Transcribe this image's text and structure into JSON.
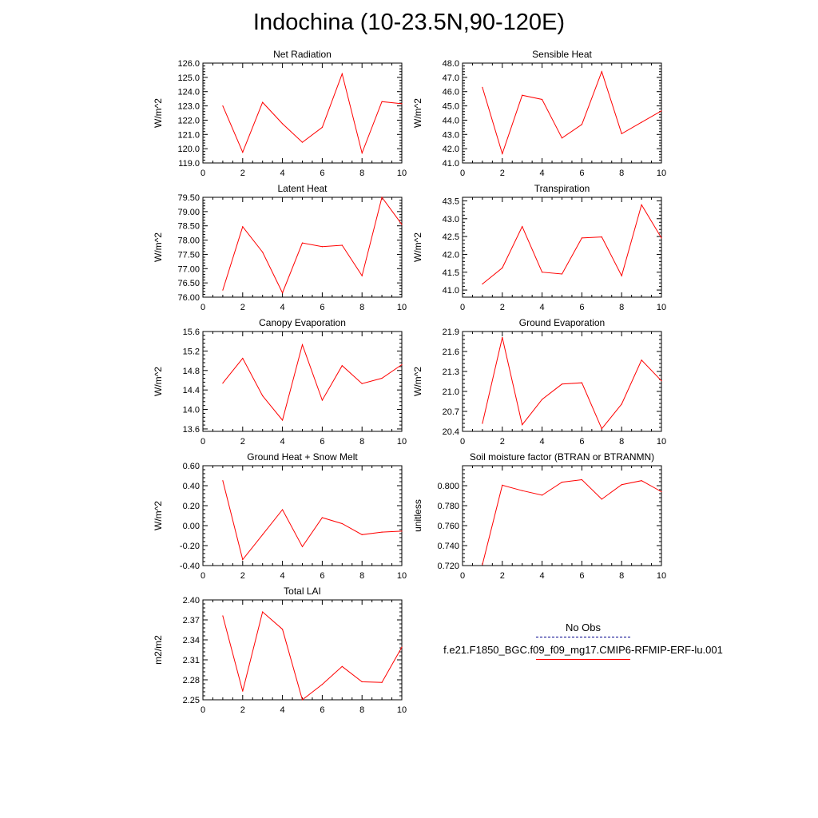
{
  "title": "Indochina (10-23.5N,90-120E)",
  "legend": [
    {
      "label": "No Obs",
      "style": "dashed",
      "color": "#00008b"
    },
    {
      "label": "f.e21.F1850_BGC.f09_f09_mg17.CMIP6-RFMIP-ERF-lu.001",
      "style": "solid",
      "color": "#ff0000"
    }
  ],
  "line_color": "#ff0000",
  "chart_data": [
    {
      "type": "line",
      "title": "Net Radiation",
      "ylabel": "W/m^2",
      "xlim": [
        0,
        10
      ],
      "xticks": [
        "0",
        "2",
        "4",
        "6",
        "8",
        "10"
      ],
      "ylim": [
        119,
        126
      ],
      "yticks": [
        "126.0",
        "125.0",
        "124.0",
        "123.0",
        "122.0",
        "121.0",
        "120.0",
        "119.0"
      ],
      "x": [
        1,
        2,
        3,
        4,
        5,
        6,
        7,
        8,
        9,
        10
      ],
      "values": [
        123.0,
        119.75,
        123.25,
        121.75,
        120.45,
        121.5,
        125.25,
        119.7,
        123.3,
        123.15
      ]
    },
    {
      "type": "line",
      "title": "Sensible Heat",
      "ylabel": "W/m^2",
      "xlim": [
        0,
        10
      ],
      "xticks": [
        "0",
        "2",
        "4",
        "6",
        "8",
        "10"
      ],
      "ylim": [
        41,
        48
      ],
      "yticks": [
        "48.0",
        "47.0",
        "46.0",
        "45.0",
        "44.0",
        "43.0",
        "42.0",
        "41.0"
      ],
      "x": [
        1,
        2,
        3,
        4,
        5,
        6,
        7,
        8,
        9,
        10
      ],
      "values": [
        46.3,
        41.65,
        45.75,
        45.45,
        42.75,
        43.7,
        47.4,
        43.05,
        43.85,
        44.65
      ]
    },
    {
      "type": "line",
      "title": "Latent Heat",
      "ylabel": "W/m^2",
      "xlim": [
        0,
        10
      ],
      "xticks": [
        "0",
        "2",
        "4",
        "6",
        "8",
        "10"
      ],
      "ylim": [
        76,
        79.5
      ],
      "yticks": [
        "79.50",
        "79.00",
        "78.50",
        "78.00",
        "77.50",
        "77.00",
        "76.50",
        "76.00"
      ],
      "x": [
        1,
        2,
        3,
        4,
        5,
        6,
        7,
        8,
        9,
        10
      ],
      "values": [
        76.25,
        78.47,
        77.58,
        76.15,
        77.9,
        77.77,
        77.82,
        76.75,
        79.5,
        78.55
      ]
    },
    {
      "type": "line",
      "title": "Transpiration",
      "ylabel": "W/m^2",
      "xlim": [
        0,
        10
      ],
      "xticks": [
        "0",
        "2",
        "4",
        "6",
        "8",
        "10"
      ],
      "ylim": [
        40.8,
        43.6
      ],
      "yticks": [
        "43.5",
        "43.0",
        "42.5",
        "42.0",
        "41.5",
        "41.0"
      ],
      "x": [
        1,
        2,
        3,
        4,
        5,
        6,
        7,
        8,
        9,
        10
      ],
      "values": [
        41.17,
        41.62,
        42.78,
        41.5,
        41.45,
        42.46,
        42.49,
        41.4,
        43.39,
        42.46
      ]
    },
    {
      "type": "line",
      "title": "Canopy Evaporation",
      "ylabel": "W/m^2",
      "xlim": [
        0,
        10
      ],
      "xticks": [
        "0",
        "2",
        "4",
        "6",
        "8",
        "10"
      ],
      "ylim": [
        13.55,
        15.6
      ],
      "yticks": [
        "15.6",
        "15.2",
        "14.8",
        "14.4",
        "14.0",
        "13.6"
      ],
      "x": [
        1,
        2,
        3,
        4,
        5,
        6,
        7,
        8,
        9,
        10
      ],
      "values": [
        14.54,
        15.05,
        14.28,
        13.78,
        15.33,
        14.19,
        14.9,
        14.53,
        14.64,
        14.92
      ]
    },
    {
      "type": "line",
      "title": "Ground Evaporation",
      "ylabel": "W/m^2",
      "xlim": [
        0,
        10
      ],
      "xticks": [
        "0",
        "2",
        "4",
        "6",
        "8",
        "10"
      ],
      "ylim": [
        20.4,
        21.9
      ],
      "yticks": [
        "21.9",
        "21.6",
        "21.3",
        "21.0",
        "20.7",
        "20.4"
      ],
      "x": [
        1,
        2,
        3,
        4,
        5,
        6,
        7,
        8,
        9,
        10
      ],
      "values": [
        20.52,
        21.81,
        20.5,
        20.88,
        21.11,
        21.13,
        20.44,
        20.81,
        21.47,
        21.16
      ]
    },
    {
      "type": "line",
      "title": "Ground Heat + Snow Melt",
      "ylabel": "W/m^2",
      "xlim": [
        0,
        10
      ],
      "xticks": [
        "0",
        "2",
        "4",
        "6",
        "8",
        "10"
      ],
      "ylim": [
        -0.4,
        0.6
      ],
      "yticks": [
        "0.60",
        "0.40",
        "0.20",
        "0.00",
        "-0.20",
        "-0.40"
      ],
      "x": [
        1,
        2,
        3,
        4,
        5,
        6,
        7,
        8,
        9,
        10
      ],
      "values": [
        0.45,
        -0.34,
        -0.09,
        0.16,
        -0.21,
        0.08,
        0.02,
        -0.09,
        -0.065,
        -0.055
      ]
    },
    {
      "type": "line",
      "title": "Soil moisture factor (BTRAN or BTRANMN)",
      "ylabel": "unitless",
      "xlim": [
        0,
        10
      ],
      "xticks": [
        "0",
        "2",
        "4",
        "6",
        "8",
        "10"
      ],
      "ylim": [
        0.72,
        0.82
      ],
      "yticks": [
        "0.800",
        "0.780",
        "0.760",
        "0.740",
        "0.720"
      ],
      "x": [
        1,
        2,
        3,
        4,
        5,
        6,
        7,
        8,
        9,
        10
      ],
      "values": [
        0.721,
        0.8005,
        0.795,
        0.7905,
        0.8035,
        0.806,
        0.7865,
        0.801,
        0.805,
        0.794
      ]
    },
    {
      "type": "line",
      "title": "Total LAI",
      "ylabel": "m2/m2",
      "xlim": [
        0,
        10
      ],
      "xticks": [
        "0",
        "2",
        "4",
        "6",
        "8",
        "10"
      ],
      "ylim": [
        2.25,
        2.4
      ],
      "yticks": [
        "2.40",
        "2.37",
        "2.34",
        "2.31",
        "2.28",
        "2.25"
      ],
      "x": [
        1,
        2,
        3,
        4,
        5,
        6,
        7,
        8,
        9,
        10
      ],
      "values": [
        2.376,
        2.263,
        2.382,
        2.356,
        2.25,
        2.273,
        2.3,
        2.277,
        2.276,
        2.329
      ]
    }
  ]
}
